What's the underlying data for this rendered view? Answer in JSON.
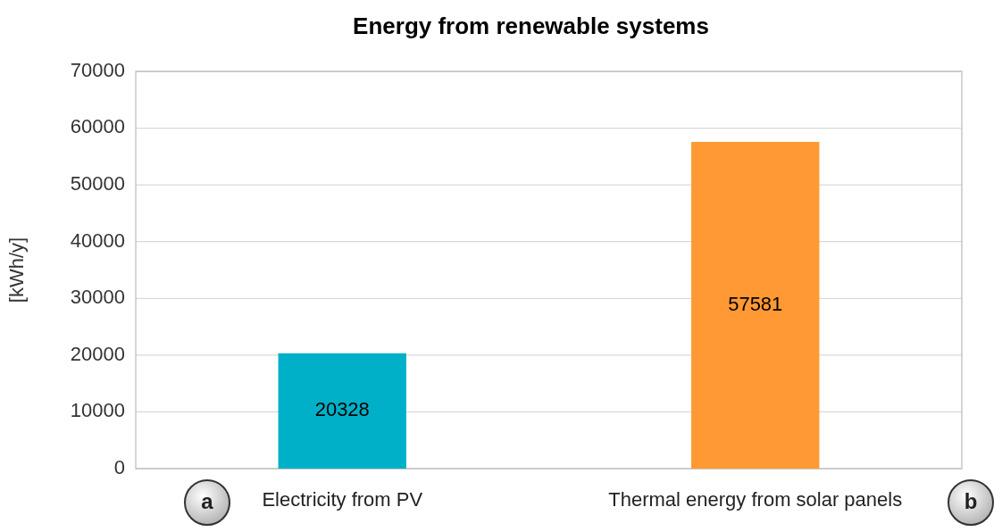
{
  "chart_data": {
    "type": "bar",
    "title": "Energy from renewable systems",
    "ylabel": "[kWh/y]",
    "categories": [
      "Electricity from PV",
      "Thermal energy from solar panels"
    ],
    "values": [
      20328,
      57581
    ],
    "colors": [
      "#00b0c8",
      "#ff9933"
    ],
    "ylim": [
      0,
      70000
    ],
    "yticks": [
      0,
      10000,
      20000,
      30000,
      40000,
      50000,
      60000,
      70000
    ],
    "grid": "y",
    "data_labels": true,
    "annotations": [
      "a",
      "b"
    ]
  }
}
